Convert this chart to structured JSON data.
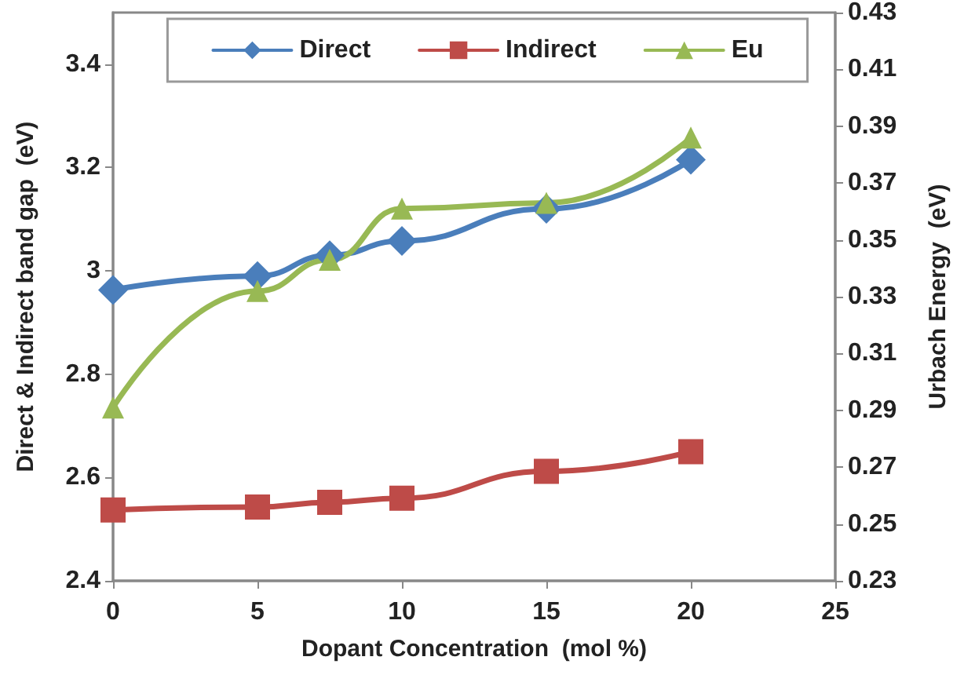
{
  "chart_data": {
    "type": "line",
    "xlabel": "Dopant Concentration  (mol %)",
    "ylabel": "Direct & Indirect band gap  (eV)",
    "y2label": "Urbach Energy  (eV)",
    "x": [
      0,
      5,
      7.5,
      10,
      15,
      20
    ],
    "xlim": [
      0,
      25
    ],
    "xticks": [
      0,
      5,
      10,
      15,
      20,
      25
    ],
    "ylim": [
      2.4,
      3.5
    ],
    "yticks": [
      2.4,
      2.6,
      2.8,
      3,
      3.2,
      3.4
    ],
    "y2lim": [
      0.23,
      0.43
    ],
    "y2ticks": [
      0.23,
      0.25,
      0.27,
      0.29,
      0.31,
      0.33,
      0.35,
      0.37,
      0.39,
      0.41,
      0.43
    ],
    "series": [
      {
        "name": "Direct",
        "color": "#4a7ebb",
        "marker": "diamond",
        "values": [
          2.963,
          2.99,
          3.03,
          3.058,
          3.12,
          3.215
        ]
      },
      {
        "name": "Indirect",
        "color": "#be4b48",
        "marker": "square",
        "values": [
          2.537,
          2.543,
          2.552,
          2.56,
          2.612,
          2.65
        ]
      },
      {
        "name": "Eu",
        "color": "#98b954",
        "marker": "triangle",
        "axis": "y2",
        "values": [
          0.291,
          0.332,
          0.343,
          0.361,
          0.363,
          0.386
        ]
      }
    ],
    "grid": false,
    "legend": "top",
    "line_style": "solid"
  }
}
